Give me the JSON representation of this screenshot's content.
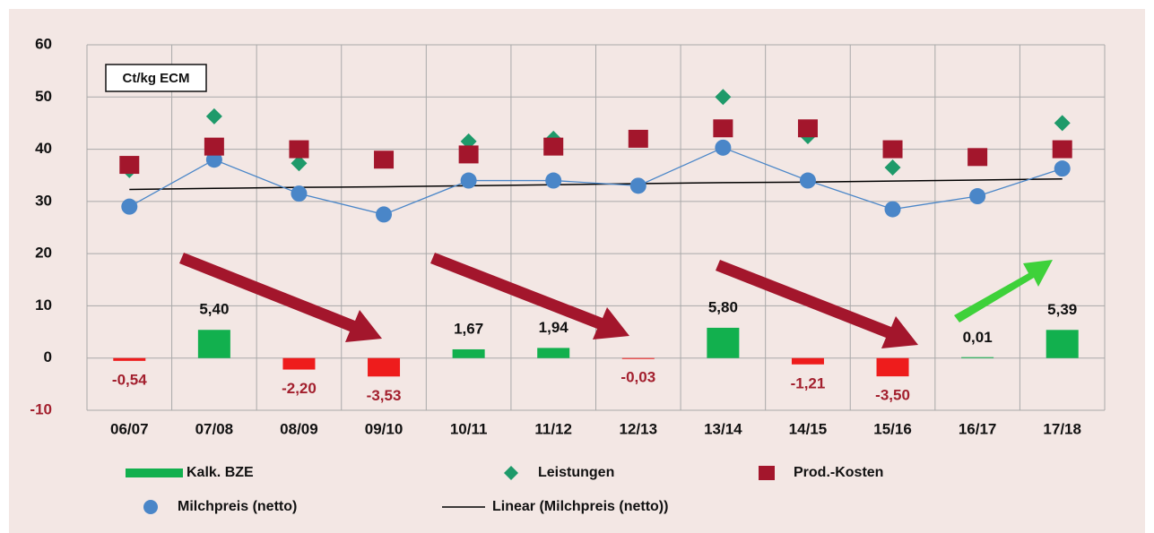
{
  "chart_data": {
    "type": "combo",
    "annotation": "Ct/kg ECM",
    "categories": [
      "06/07",
      "07/08",
      "08/09",
      "09/10",
      "10/11",
      "11/12",
      "12/13",
      "13/14",
      "14/15",
      "15/16",
      "16/17",
      "17/18"
    ],
    "ylim": [
      -10,
      60
    ],
    "yticks": [
      -10,
      0,
      10,
      20,
      30,
      40,
      50,
      60
    ],
    "negative_color": "#ee1c1c",
    "negative_label_color": "#a3202e",
    "grid": true,
    "series": [
      {
        "name": "Kalk. BZE",
        "kind": "bar",
        "color": "#12b04e",
        "values": [
          -0.54,
          5.4,
          -2.2,
          -3.53,
          1.67,
          1.94,
          -0.03,
          5.8,
          -1.21,
          -3.5,
          0.01,
          5.39
        ],
        "value_labels": [
          "-0,54",
          "5,40",
          "-2,20",
          "-3,53",
          "1,67",
          "1,94",
          "-0,03",
          "5,80",
          "-1,21",
          "-3,50",
          "0,01",
          "5,39"
        ]
      },
      {
        "name": "Leistungen",
        "kind": "diamond",
        "color": "#1e9a6a",
        "values": [
          36,
          46.3,
          37.3,
          null,
          41.5,
          42,
          null,
          50,
          42.5,
          36.5,
          null,
          45
        ]
      },
      {
        "name": "Prod.-Kosten",
        "kind": "square",
        "color": "#a3162c",
        "values": [
          37,
          40.5,
          40,
          38,
          39,
          40.5,
          42,
          44,
          44,
          40,
          38.5,
          40
        ]
      },
      {
        "name": "Milchpreis (netto)",
        "kind": "circle",
        "color": "#4a86c8",
        "values": [
          29,
          38,
          31.5,
          27.5,
          34,
          34,
          33,
          40.3,
          34,
          28.5,
          31,
          36.3
        ]
      },
      {
        "name": "Linear (Milchpreis (netto))",
        "kind": "trend",
        "color": "#000000",
        "values": [
          32.3,
          32.5,
          32.7,
          32.8,
          33.0,
          33.2,
          33.4,
          33.6,
          33.7,
          33.9,
          34.1,
          34.3
        ]
      }
    ]
  }
}
